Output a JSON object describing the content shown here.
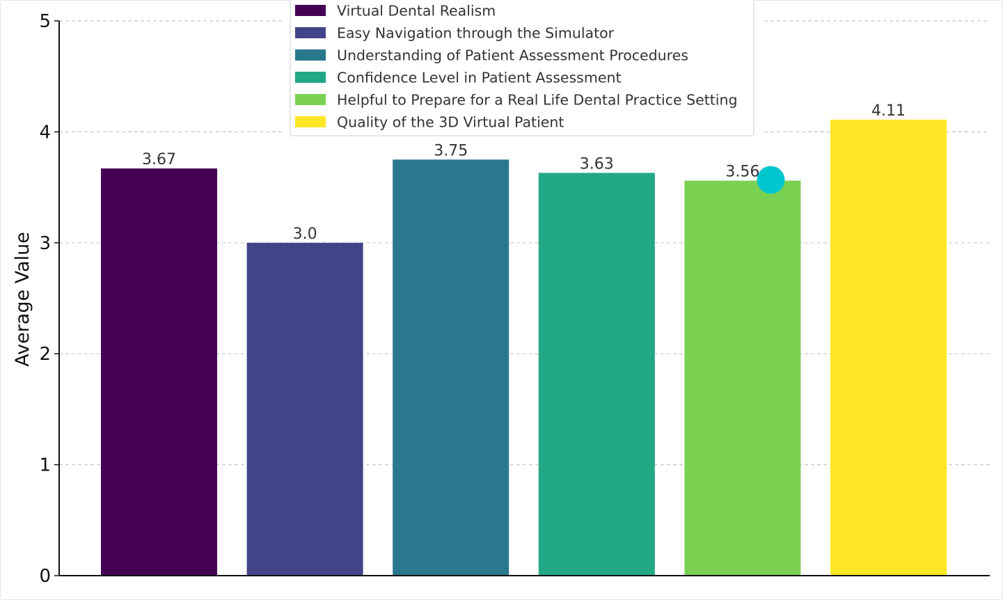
{
  "chart_data": {
    "type": "bar",
    "categories": [
      "Virtual Dental Realism",
      "Easy Navigation through the Simulator",
      "Understanding of Patient Assessment Procedures",
      "Confidence Level in Patient Assessment",
      "Helpful to Prepare for a Real Life Dental Practice Setting",
      "Quality of the 3D Virtual Patient"
    ],
    "values": [
      3.67,
      3.0,
      3.75,
      3.63,
      3.56,
      4.11
    ],
    "data_labels": [
      "3.67",
      "3.0",
      "3.75",
      "3.63",
      "3.56",
      "4.11"
    ],
    "colors": [
      "#440154",
      "#414487",
      "#2a788e",
      "#22a884",
      "#7ad151",
      "#fde725"
    ],
    "title": "",
    "xlabel": "",
    "ylabel": "Average Value",
    "ylim": [
      0,
      5
    ],
    "yticks": [
      0,
      1,
      2,
      3,
      4,
      5
    ],
    "ytick_labels": [
      "0",
      "1",
      "2",
      "3",
      "4",
      "5"
    ],
    "grid": "y-dashed",
    "legend_position": "top-center",
    "marker": {
      "color": "#00c5cc",
      "category_index": 4
    }
  }
}
